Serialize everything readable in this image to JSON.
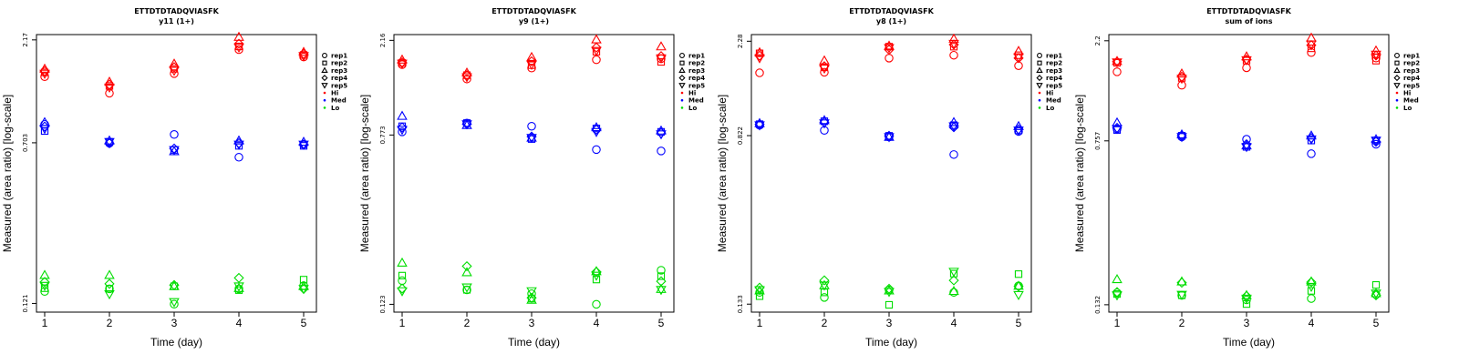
{
  "chart_data": [
    {
      "type": "scatter",
      "title": "ETTDTDTADQVIASFK",
      "subtitle": "y11 (1+)",
      "xlabel": "Time (day)",
      "ylabel": "Measured (area ratio) [log-scale]",
      "x_ticks": [
        "1",
        "2",
        "3",
        "4",
        "5"
      ],
      "y_ticks": [
        "0.121",
        "0.703",
        "2.17"
      ],
      "y_scale": "log",
      "ylim": [
        0.11,
        2.3
      ],
      "legend": {
        "placement": "right",
        "shapes": [
          "rep1",
          "rep2",
          "rep3",
          "rep4",
          "rep5"
        ],
        "colors": [
          "Hi",
          "Med",
          "Lo"
        ]
      },
      "series_colors": {
        "Hi": "#ff0000",
        "Med": "#0000ff",
        "Lo": "#00dd00"
      },
      "points": {
        "Hi": {
          "rep1": [
            1.45,
            1.21,
            1.5,
            1.95,
            1.8
          ],
          "rep2": [
            1.52,
            1.31,
            1.58,
            2.02,
            1.84
          ],
          "rep3": [
            1.58,
            1.37,
            1.67,
            2.24,
            1.9
          ],
          "rep4": [
            1.54,
            1.33,
            1.61,
            2.08,
            1.86
          ],
          "rep5": [
            1.5,
            1.29,
            1.55,
            2.0,
            1.82
          ]
        },
        "Med": {
          "rep1": [
            0.86,
            0.7,
            0.77,
            0.6,
            0.69
          ],
          "rep2": [
            0.8,
            0.71,
            0.65,
            0.68,
            0.68
          ],
          "rep3": [
            0.88,
            0.72,
            0.64,
            0.72,
            0.71
          ],
          "rep4": [
            0.84,
            0.7,
            0.66,
            0.7,
            0.69
          ],
          "rep5": [
            0.82,
            0.71,
            0.65,
            0.69,
            0.69
          ]
        },
        "Lo": {
          "rep1": [
            0.138,
            0.142,
            0.12,
            0.142,
            0.147
          ],
          "rep2": [
            0.143,
            0.142,
            0.146,
            0.14,
            0.157
          ],
          "rep3": [
            0.165,
            0.165,
            0.146,
            0.143,
            0.146
          ],
          "rep4": [
            0.153,
            0.15,
            0.148,
            0.16,
            0.142
          ],
          "rep5": [
            0.147,
            0.134,
            0.123,
            0.146,
            0.142
          ]
        }
      }
    },
    {
      "type": "scatter",
      "title": "ETTDTDTADQVIASFK",
      "subtitle": "y9 (1+)",
      "xlabel": "Time (day)",
      "ylabel": "Measured (area ratio) [log-scale]",
      "x_ticks": [
        "1",
        "2",
        "3",
        "4",
        "5"
      ],
      "y_ticks": [
        "0.123",
        "0.773",
        "2.16"
      ],
      "y_scale": "log",
      "ylim": [
        0.113,
        2.3
      ],
      "legend": {
        "placement": "right",
        "shapes": [
          "rep1",
          "rep2",
          "rep3",
          "rep4",
          "rep5"
        ],
        "colors": [
          "Hi",
          "Med",
          "Lo"
        ]
      },
      "series_colors": {
        "Hi": "#ff0000",
        "Med": "#0000ff",
        "Lo": "#00dd00"
      },
      "points": {
        "Hi": {
          "rep1": [
            1.66,
            1.42,
            1.6,
            1.75,
            1.77
          ],
          "rep2": [
            1.69,
            1.48,
            1.65,
            1.91,
            1.71
          ],
          "rep3": [
            1.75,
            1.52,
            1.8,
            2.18,
            2.02
          ],
          "rep4": [
            1.7,
            1.48,
            1.72,
            2.0,
            1.82
          ],
          "rep5": [
            1.68,
            1.45,
            1.66,
            1.93,
            1.78
          ]
        },
        "Med": {
          "rep1": [
            0.8,
            0.88,
            0.85,
            0.66,
            0.65
          ],
          "rep2": [
            0.85,
            0.88,
            0.74,
            0.83,
            0.8
          ],
          "rep3": [
            0.95,
            0.86,
            0.75,
            0.84,
            0.81
          ],
          "rep4": [
            0.84,
            0.87,
            0.76,
            0.82,
            0.79
          ],
          "rep5": [
            0.82,
            0.87,
            0.75,
            0.8,
            0.78
          ]
        },
        "Lo": {
          "rep1": [
            0.159,
            0.144,
            0.138,
            0.123,
            0.178
          ],
          "rep2": [
            0.168,
            0.144,
            0.131,
            0.161,
            0.167
          ],
          "rep3": [
            0.193,
            0.174,
            0.129,
            0.176,
            0.145
          ],
          "rep4": [
            0.146,
            0.186,
            0.132,
            0.175,
            0.158
          ],
          "rep5": [
            0.142,
            0.148,
            0.142,
            0.168,
            0.144
          ]
        }
      }
    },
    {
      "type": "scatter",
      "title": "ETTDTDTADQVIASFK",
      "subtitle": "y8 (1+)",
      "xlabel": "Time (day)",
      "ylabel": "Measured (area ratio) [log-scale]",
      "x_ticks": [
        "1",
        "2",
        "3",
        "4",
        "5"
      ],
      "y_ticks": [
        "0.133",
        "0.822",
        "2.28"
      ],
      "y_scale": "log",
      "ylim": [
        0.122,
        2.45
      ],
      "legend": {
        "placement": "right",
        "shapes": [
          "rep1",
          "rep2",
          "rep3",
          "rep4",
          "rep5"
        ],
        "colors": [
          "Hi",
          "Med",
          "Lo"
        ]
      },
      "series_colors": {
        "Hi": "#ff0000",
        "Med": "#0000ff",
        "Lo": "#00dd00"
      },
      "points": {
        "Hi": {
          "rep1": [
            1.62,
            1.63,
            1.9,
            1.96,
            1.75
          ],
          "rep2": [
            2.0,
            1.72,
            2.15,
            2.15,
            1.96
          ],
          "rep3": [
            2.02,
            1.85,
            2.17,
            2.34,
            2.05
          ],
          "rep4": [
            1.95,
            1.74,
            2.08,
            2.2,
            1.9
          ],
          "rep5": [
            1.9,
            1.7,
            2.12,
            2.22,
            1.92
          ]
        },
        "Med": {
          "rep1": [
            0.92,
            0.87,
            0.81,
            0.67,
            0.86
          ],
          "rep2": [
            0.93,
            0.96,
            0.82,
            0.92,
            0.87
          ],
          "rep3": [
            0.94,
            0.97,
            0.81,
            0.95,
            0.91
          ],
          "rep4": [
            0.93,
            0.95,
            0.82,
            0.9,
            0.88
          ],
          "rep5": [
            0.92,
            0.94,
            0.81,
            0.91,
            0.87
          ]
        },
        "Lo": {
          "rep1": [
            0.151,
            0.143,
            0.155,
            0.151,
            0.162
          ],
          "rep2": [
            0.145,
            0.151,
            0.132,
            0.185,
            0.184
          ],
          "rep3": [
            0.154,
            0.163,
            0.154,
            0.153,
            0.162
          ],
          "rep4": [
            0.159,
            0.172,
            0.157,
            0.172,
            0.161
          ],
          "rep5": [
            0.155,
            0.163,
            0.152,
            0.189,
            0.147
          ]
        }
      }
    },
    {
      "type": "scatter",
      "title": "ETTDTDTADQVIASFK",
      "subtitle": "sum of ions",
      "xlabel": "Time (day)",
      "ylabel": "Measured (area ratio) [log-scale]",
      "x_ticks": [
        "1",
        "2",
        "3",
        "4",
        "5"
      ],
      "y_ticks": [
        "0.132",
        "0.757",
        "2.2"
      ],
      "y_scale": "log",
      "ylim": [
        0.122,
        2.35
      ],
      "legend": {
        "placement": "right",
        "shapes": [
          "rep1",
          "rep2",
          "rep3",
          "rep4",
          "rep5"
        ],
        "colors": [
          "Hi",
          "Med",
          "Lo"
        ]
      },
      "series_colors": {
        "Hi": "#ff0000",
        "Med": "#0000ff",
        "Lo": "#00dd00"
      },
      "points": {
        "Hi": {
          "rep1": [
            1.58,
            1.37,
            1.65,
            1.94,
            1.83
          ],
          "rep2": [
            1.74,
            1.48,
            1.78,
            2.03,
            1.78
          ],
          "rep3": [
            1.77,
            1.55,
            1.86,
            2.27,
            1.98
          ],
          "rep4": [
            1.76,
            1.5,
            1.8,
            2.1,
            1.88
          ],
          "rep5": [
            1.75,
            1.47,
            1.79,
            2.12,
            1.9
          ]
        },
        "Med": {
          "rep1": [
            0.86,
            0.79,
            0.77,
            0.66,
            0.73
          ],
          "rep2": [
            0.85,
            0.8,
            0.71,
            0.76,
            0.76
          ],
          "rep3": [
            0.92,
            0.81,
            0.72,
            0.8,
            0.77
          ],
          "rep4": [
            0.87,
            0.8,
            0.73,
            0.78,
            0.75
          ],
          "rep5": [
            0.86,
            0.79,
            0.71,
            0.77,
            0.76
          ]
        },
        "Lo": {
          "rep1": [
            0.15,
            0.146,
            0.139,
            0.141,
            0.147
          ],
          "rep2": [
            0.148,
            0.146,
            0.133,
            0.153,
            0.163
          ],
          "rep3": [
            0.173,
            0.169,
            0.146,
            0.169,
            0.149
          ],
          "rep4": [
            0.151,
            0.167,
            0.145,
            0.168,
            0.146
          ],
          "rep5": [
            0.146,
            0.147,
            0.141,
            0.16,
            0.149
          ]
        }
      }
    }
  ]
}
